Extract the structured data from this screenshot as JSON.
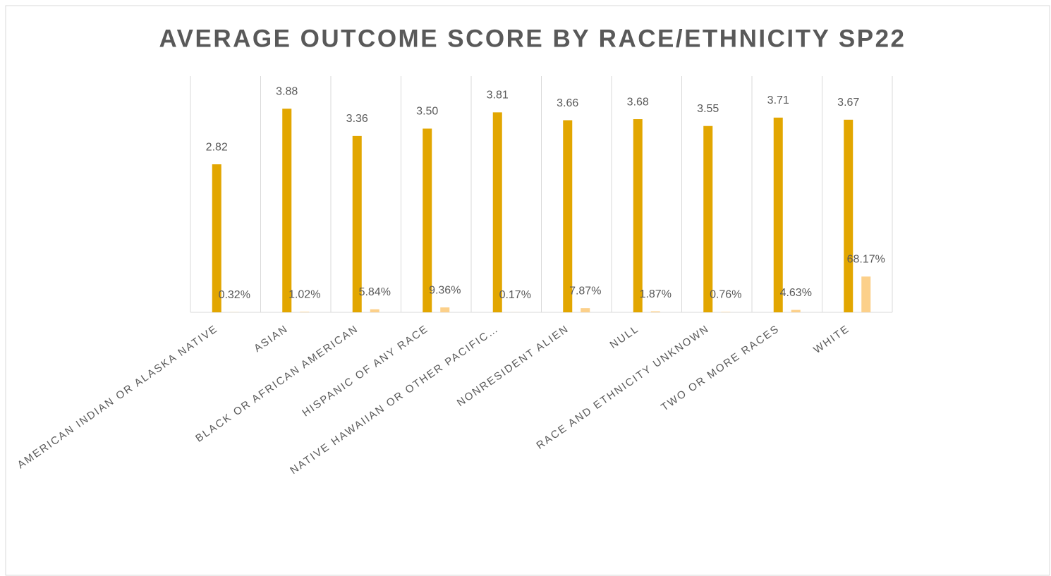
{
  "chart_data": {
    "type": "bar",
    "title": "AVERAGE OUTCOME SCORE BY RACE/ETHNICITY SP22",
    "categories": [
      "AMERICAN INDIAN OR ALASKA NATIVE",
      "ASIAN",
      "BLACK OR AFRICAN AMERICAN",
      "HISPANIC OF ANY RACE",
      "NATIVE HAWAIIAN OR OTHER PACIFIC…",
      "NONRESIDENT ALIEN",
      "NULL",
      "RACE AND ETHNICITY UNKNOWN",
      "TWO OR MORE RACES",
      "WHITE"
    ],
    "series": [
      {
        "color": "#e2a600",
        "values": [
          2.82,
          3.88,
          3.36,
          3.5,
          3.81,
          3.66,
          3.68,
          3.55,
          3.71,
          3.67
        ],
        "value_labels": [
          "2.82",
          "3.88",
          "3.36",
          "3.50",
          "3.81",
          "3.66",
          "3.68",
          "3.55",
          "3.71",
          "3.67"
        ]
      },
      {
        "color": "#fcd08a",
        "axis": "y2",
        "values": [
          0.32,
          1.02,
          5.84,
          9.36,
          0.17,
          7.87,
          1.87,
          0.76,
          4.63,
          68.17
        ],
        "value_labels": [
          "0.32%",
          "1.02%",
          "5.84%",
          "9.36%",
          "0.17%",
          "7.87%",
          "1.87%",
          "0.76%",
          "4.63%",
          "68.17%"
        ]
      }
    ],
    "ylim": [
      0,
      4.5
    ],
    "y2lim": [
      0,
      450
    ]
  }
}
